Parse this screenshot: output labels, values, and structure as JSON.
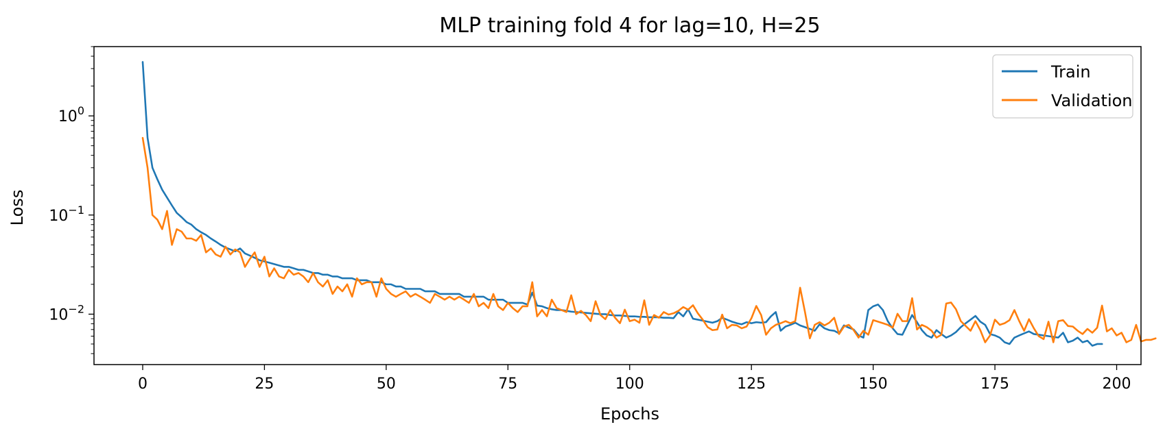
{
  "chart_data": {
    "type": "line",
    "title": "MLP training fold 4 for lag=10, H=25",
    "xlabel": "Epochs",
    "ylabel": "Loss",
    "xlim": [
      -10,
      205
    ],
    "ylim": [
      0.0031,
      5
    ],
    "yscale": "log",
    "grid": false,
    "legend_position": "top-right",
    "xticks": [
      0,
      25,
      50,
      75,
      100,
      125,
      150,
      175,
      200
    ],
    "yticks": [
      {
        "value": 1,
        "base": "10",
        "exp": "0"
      },
      {
        "value": 0.1,
        "base": "10",
        "exp": "−1"
      },
      {
        "value": 0.01,
        "base": "10",
        "exp": "−2"
      }
    ],
    "series": [
      {
        "name": "Train",
        "color": "#1f77b4",
        "values": [
          3.5,
          0.6,
          0.3,
          0.23,
          0.18,
          0.15,
          0.125,
          0.105,
          0.095,
          0.085,
          0.08,
          0.072,
          0.067,
          0.063,
          0.058,
          0.054,
          0.05,
          0.047,
          0.045,
          0.043,
          0.046,
          0.041,
          0.039,
          0.037,
          0.035,
          0.034,
          0.033,
          0.032,
          0.031,
          0.03,
          0.03,
          0.029,
          0.028,
          0.028,
          0.027,
          0.026,
          0.026,
          0.025,
          0.025,
          0.024,
          0.024,
          0.023,
          0.023,
          0.023,
          0.022,
          0.022,
          0.022,
          0.021,
          0.021,
          0.021,
          0.02,
          0.02,
          0.019,
          0.019,
          0.018,
          0.018,
          0.018,
          0.018,
          0.017,
          0.017,
          0.017,
          0.016,
          0.016,
          0.016,
          0.016,
          0.016,
          0.015,
          0.015,
          0.015,
          0.015,
          0.015,
          0.014,
          0.014,
          0.014,
          0.014,
          0.013,
          0.013,
          0.013,
          0.013,
          0.0125,
          0.0165,
          0.0122,
          0.012,
          0.0115,
          0.0112,
          0.011,
          0.011,
          0.0108,
          0.0106,
          0.0105,
          0.0104,
          0.0103,
          0.0102,
          0.0101,
          0.01,
          0.01,
          0.0098,
          0.0097,
          0.0097,
          0.0096,
          0.0095,
          0.0095,
          0.0094,
          0.0094,
          0.0093,
          0.0093,
          0.0093,
          0.0092,
          0.0092,
          0.0091,
          0.0105,
          0.0095,
          0.0112,
          0.009,
          0.0088,
          0.0086,
          0.0084,
          0.0082,
          0.0085,
          0.0092,
          0.0088,
          0.0084,
          0.0081,
          0.0079,
          0.0083,
          0.0081,
          0.0083,
          0.0082,
          0.0083,
          0.0095,
          0.0105,
          0.0068,
          0.0075,
          0.0078,
          0.0082,
          0.0077,
          0.0074,
          0.0071,
          0.0068,
          0.0079,
          0.0072,
          0.0069,
          0.0068,
          0.0064,
          0.0077,
          0.0073,
          0.007,
          0.0061,
          0.0058,
          0.011,
          0.012,
          0.0125,
          0.011,
          0.0085,
          0.0072,
          0.0063,
          0.0062,
          0.0078,
          0.0098,
          0.0083,
          0.0069,
          0.0061,
          0.0058,
          0.0069,
          0.0063,
          0.0058,
          0.0061,
          0.0066,
          0.0074,
          0.0081,
          0.0088,
          0.0096,
          0.0084,
          0.0078,
          0.0063,
          0.0061,
          0.0058,
          0.0052,
          0.005,
          0.0058,
          0.0061,
          0.0064,
          0.0067,
          0.0063,
          0.0062,
          0.0061,
          0.006,
          0.0059,
          0.0058,
          0.0065,
          0.0052,
          0.0054,
          0.0058,
          0.0052,
          0.0054,
          0.0048,
          0.005,
          0.005
        ]
      },
      {
        "name": "Validation",
        "color": "#ff7f0e",
        "values": [
          0.6,
          0.3,
          0.1,
          0.09,
          0.072,
          0.11,
          0.05,
          0.072,
          0.068,
          0.058,
          0.058,
          0.055,
          0.063,
          0.042,
          0.046,
          0.04,
          0.038,
          0.048,
          0.04,
          0.045,
          0.042,
          0.03,
          0.036,
          0.042,
          0.03,
          0.038,
          0.024,
          0.029,
          0.024,
          0.023,
          0.028,
          0.025,
          0.026,
          0.024,
          0.021,
          0.026,
          0.021,
          0.019,
          0.022,
          0.016,
          0.019,
          0.017,
          0.02,
          0.015,
          0.023,
          0.02,
          0.021,
          0.021,
          0.015,
          0.023,
          0.018,
          0.016,
          0.015,
          0.016,
          0.017,
          0.015,
          0.016,
          0.015,
          0.014,
          0.013,
          0.016,
          0.015,
          0.014,
          0.015,
          0.014,
          0.015,
          0.014,
          0.013,
          0.016,
          0.012,
          0.013,
          0.0115,
          0.016,
          0.012,
          0.011,
          0.013,
          0.0115,
          0.0105,
          0.012,
          0.012,
          0.021,
          0.0095,
          0.011,
          0.0095,
          0.014,
          0.0115,
          0.011,
          0.0105,
          0.0155,
          0.01,
          0.0108,
          0.0098,
          0.0085,
          0.0135,
          0.0098,
          0.0089,
          0.011,
          0.0092,
          0.0081,
          0.0111,
          0.0085,
          0.0088,
          0.0082,
          0.0138,
          0.0078,
          0.0098,
          0.0092,
          0.0105,
          0.0099,
          0.0102,
          0.0108,
          0.0118,
          0.0111,
          0.0123,
          0.0102,
          0.0088,
          0.0074,
          0.0069,
          0.007,
          0.0099,
          0.0072,
          0.0078,
          0.0077,
          0.0072,
          0.0075,
          0.0091,
          0.0121,
          0.0098,
          0.0062,
          0.0072,
          0.0078,
          0.0081,
          0.0085,
          0.0081,
          0.0085,
          0.0185,
          0.0105,
          0.0057,
          0.0078,
          0.0083,
          0.0077,
          0.0082,
          0.0092,
          0.0063,
          0.0075,
          0.0078,
          0.0069,
          0.0058,
          0.0068,
          0.0062,
          0.0087,
          0.0084,
          0.0081,
          0.0078,
          0.0073,
          0.0101,
          0.0085,
          0.0085,
          0.0145,
          0.007,
          0.0078,
          0.0074,
          0.0068,
          0.0058,
          0.0062,
          0.0128,
          0.0131,
          0.0112,
          0.0085,
          0.0076,
          0.0068,
          0.0085,
          0.0069,
          0.0052,
          0.0061,
          0.0088,
          0.0078,
          0.0081,
          0.0087,
          0.011,
          0.0085,
          0.0068,
          0.0089,
          0.0072,
          0.006,
          0.0056,
          0.0084,
          0.0052,
          0.0085,
          0.0087,
          0.0076,
          0.0075,
          0.0068,
          0.0063,
          0.0071,
          0.0065,
          0.0073,
          0.0122,
          0.0067,
          0.0072,
          0.0061,
          0.0065,
          0.0052,
          0.0055,
          0.0078,
          0.0053,
          0.0055,
          0.0055,
          0.0057
        ]
      }
    ]
  }
}
